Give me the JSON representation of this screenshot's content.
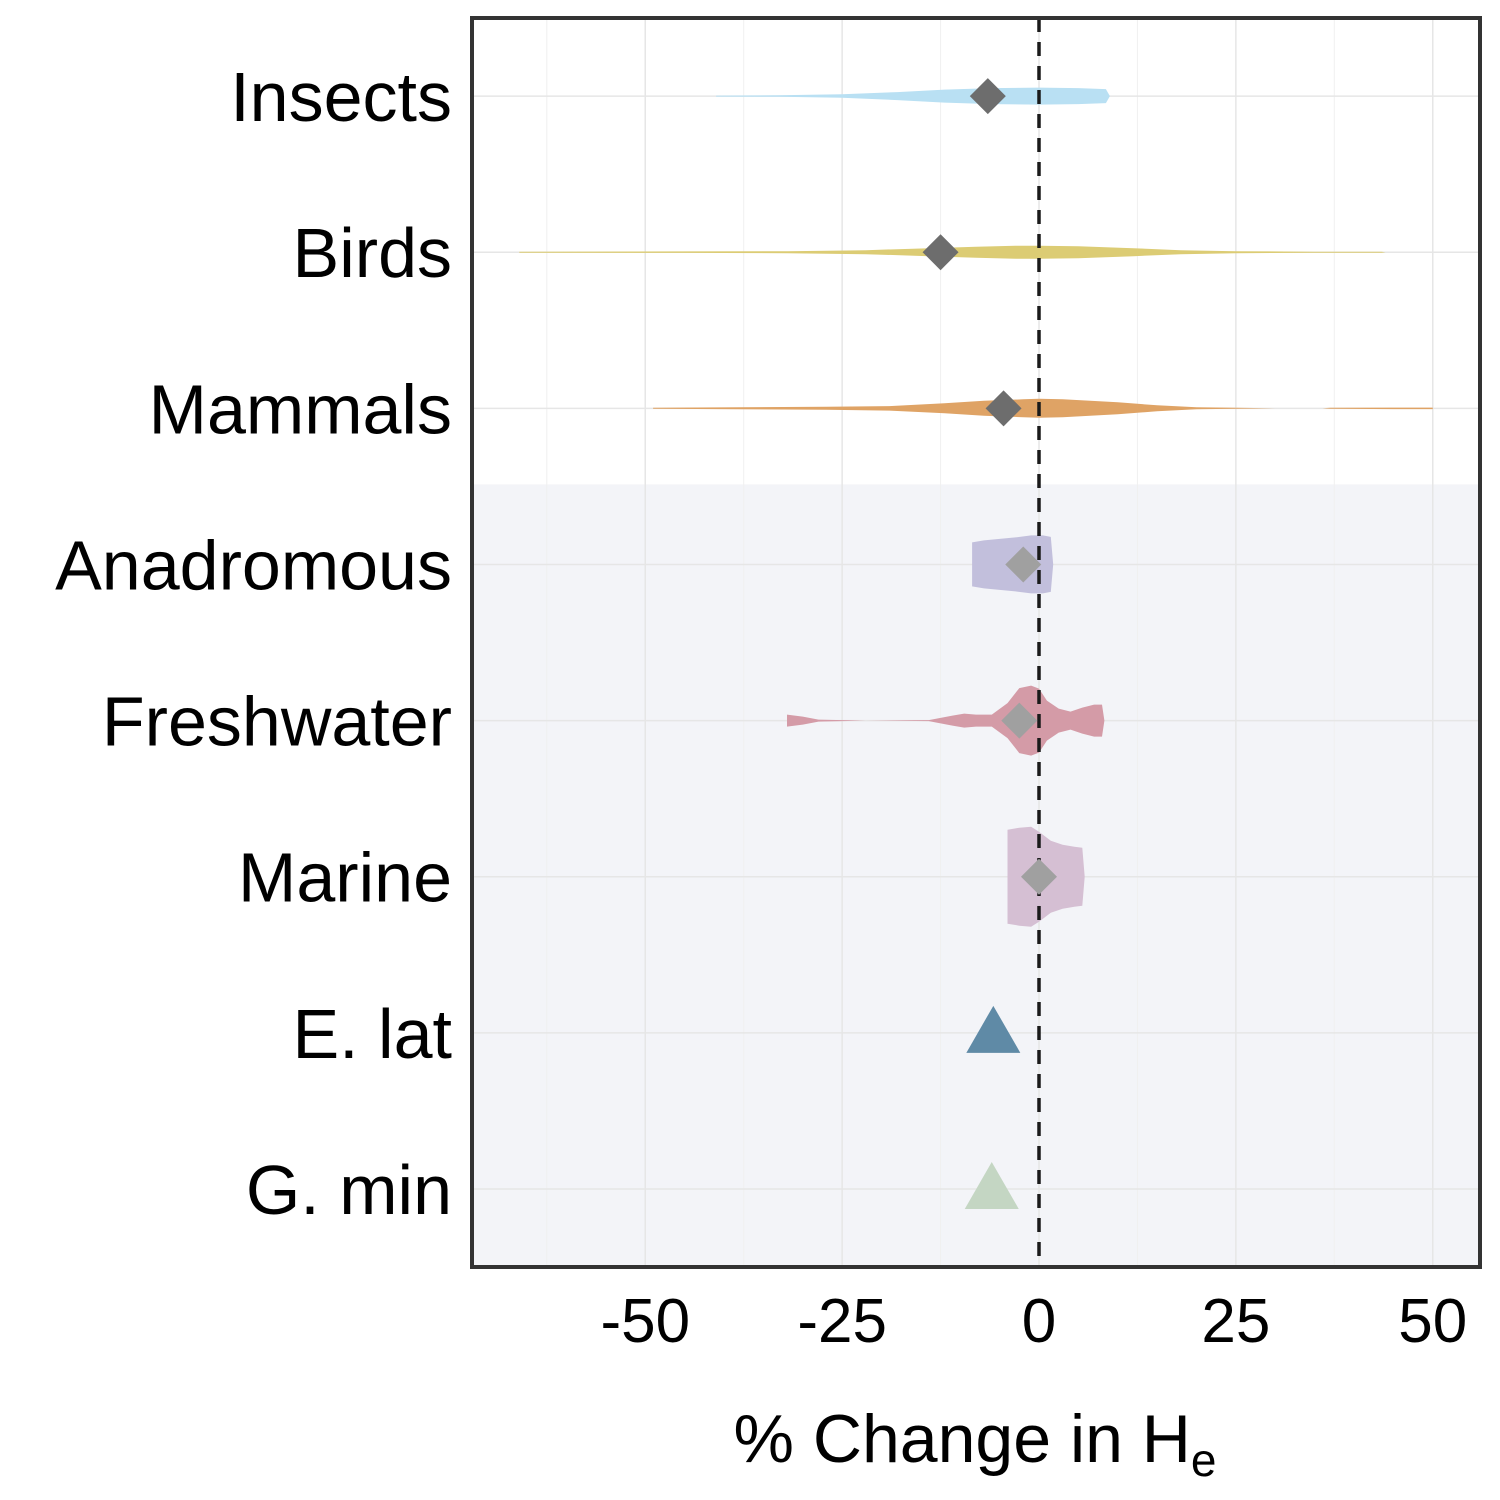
{
  "chart_data": {
    "type": "violin",
    "xlabel": "% Change in H",
    "xlabel_subscript": "e",
    "ylabel": "",
    "xlim": [
      -72,
      56
    ],
    "xticks": [
      -50,
      -25,
      0,
      25,
      50
    ],
    "xtick_labels": [
      "-50",
      "-25",
      "0",
      "25",
      "50"
    ],
    "reference_line_x": 0,
    "grid": true,
    "legend": "none",
    "categories": [
      "Insects",
      "Birds",
      "Mammals",
      "Anadromous",
      "Freshwater",
      "Marine",
      "E. lat",
      "G. min"
    ],
    "shaded_group": [
      "Anadromous",
      "Freshwater",
      "Marine",
      "E. lat",
      "G. min"
    ],
    "series": [
      {
        "category": "Insects",
        "mark": "violin",
        "color": "#b9e0f3",
        "center": -6.5,
        "center_mark": "diamond",
        "center_color": "#6d6d6d",
        "density": [
          [
            -41,
            1
          ],
          [
            -33,
            1.5
          ],
          [
            -25,
            3.5
          ],
          [
            -18,
            8
          ],
          [
            -12,
            13
          ],
          [
            -6,
            16
          ],
          [
            0,
            17
          ],
          [
            5,
            16
          ],
          [
            8.5,
            14
          ],
          [
            9,
            0
          ]
        ]
      },
      {
        "category": "Birds",
        "mark": "violin",
        "color": "#dccc74",
        "center": -12.5,
        "center_mark": "diamond",
        "center_color": "#6d6d6d",
        "density": [
          [
            -66,
            1
          ],
          [
            -45,
            1.5
          ],
          [
            -32,
            2
          ],
          [
            -22,
            4
          ],
          [
            -14,
            8
          ],
          [
            -8,
            11
          ],
          [
            -3,
            13
          ],
          [
            0,
            13
          ],
          [
            5,
            12
          ],
          [
            12,
            8
          ],
          [
            18,
            4
          ],
          [
            25,
            2
          ],
          [
            35,
            1
          ],
          [
            43.5,
            1
          ],
          [
            44,
            0
          ]
        ]
      },
      {
        "category": "Mammals",
        "mark": "violin",
        "color": "#dfa365",
        "center": -4.5,
        "center_mark": "diamond",
        "center_color": "#6d6d6d",
        "density": [
          [
            -49,
            1
          ],
          [
            -38,
            2
          ],
          [
            -27,
            3
          ],
          [
            -19,
            4.5
          ],
          [
            -12,
            10
          ],
          [
            -7,
            15
          ],
          [
            -2,
            18
          ],
          [
            0,
            19
          ],
          [
            3,
            18
          ],
          [
            10,
            12
          ],
          [
            15,
            6
          ],
          [
            20,
            2
          ],
          [
            25,
            1
          ],
          [
            30,
            0
          ],
          [
            36,
            0
          ],
          [
            37,
            1
          ],
          [
            45,
            1.5
          ],
          [
            50,
            1.5
          ]
        ]
      },
      {
        "category": "Anadromous",
        "mark": "violin",
        "color": "#c2bfdc",
        "center": -2,
        "center_mark": "diamond",
        "center_color": "#a0a0a0",
        "density": [
          [
            -8.5,
            44
          ],
          [
            -7,
            48
          ],
          [
            -5,
            51
          ],
          [
            -3,
            54
          ],
          [
            -1,
            58
          ],
          [
            0.5,
            58
          ],
          [
            1.5,
            55
          ],
          [
            1.8,
            0
          ]
        ]
      },
      {
        "category": "Freshwater",
        "mark": "violin",
        "color": "#d49ba7",
        "center": -2.5,
        "center_mark": "diamond",
        "center_color": "#a0a0a0",
        "density": [
          [
            -32,
            12
          ],
          [
            -30,
            8
          ],
          [
            -28,
            2
          ],
          [
            -22,
            0
          ],
          [
            -14,
            1
          ],
          [
            -11,
            10
          ],
          [
            -9.5,
            14
          ],
          [
            -8,
            12
          ],
          [
            -6,
            12
          ],
          [
            -4,
            35
          ],
          [
            -2.5,
            65
          ],
          [
            -1,
            70
          ],
          [
            0,
            64
          ],
          [
            1,
            40
          ],
          [
            2.5,
            24
          ],
          [
            4,
            18
          ],
          [
            5.5,
            26
          ],
          [
            7,
            32
          ],
          [
            8,
            32
          ],
          [
            8.3,
            0
          ]
        ]
      },
      {
        "category": "Marine",
        "mark": "violin",
        "color": "#d5bfd3",
        "center": 0,
        "center_mark": "diamond",
        "center_color": "#a0a0a0",
        "density": [
          [
            -4,
            94
          ],
          [
            -2.5,
            98
          ],
          [
            -1,
            100
          ],
          [
            0,
            90
          ],
          [
            1.5,
            72
          ],
          [
            3,
            64
          ],
          [
            4.5,
            60
          ],
          [
            5.5,
            58
          ],
          [
            5.8,
            0
          ]
        ]
      },
      {
        "category": "E. lat",
        "mark": "triangle",
        "value": -5.8,
        "color": "#5f8aa6"
      },
      {
        "category": "G. min",
        "mark": "triangle",
        "value": -6,
        "color": "#c4d6c3"
      }
    ]
  }
}
